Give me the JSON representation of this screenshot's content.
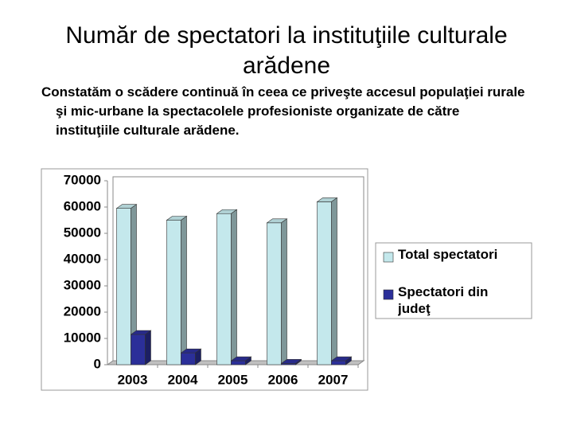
{
  "title": "Număr de spectatori la instituţiile culturale arădene",
  "body": "Constatăm o scădere continuă în ceea ce priveşte accesul populaţiei rurale şi mic-urbane la spectacolele profesioniste organizate de către instituţiile culturale arădene.",
  "chart_data": {
    "type": "bar3d",
    "categories": [
      "2003",
      "2004",
      "2005",
      "2006",
      "2007"
    ],
    "series": [
      {
        "name": "Total spectatori",
        "color": "#c4e8ec",
        "values": [
          59500,
          55000,
          57500,
          54000,
          62000
        ]
      },
      {
        "name": "Spectatori din judeţ",
        "color": "#2b2f99",
        "values": [
          11500,
          4500,
          1500,
          500,
          1500
        ]
      }
    ],
    "ylim": [
      0,
      70000
    ],
    "yticks": [
      0,
      10000,
      20000,
      30000,
      40000,
      50000,
      60000,
      70000
    ],
    "grid": false,
    "legend": "right"
  }
}
